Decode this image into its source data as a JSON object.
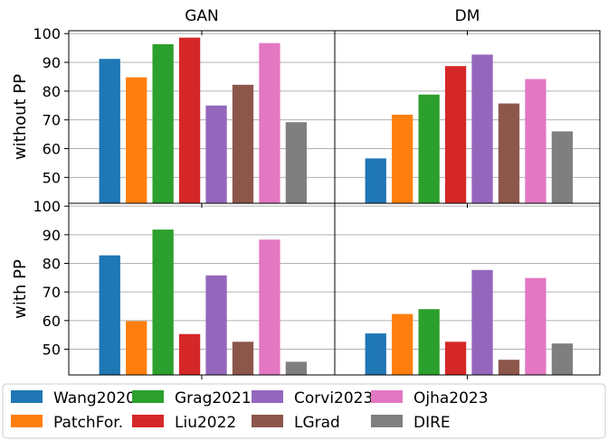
{
  "chart_data": {
    "type": "bar",
    "columns": [
      "GAN",
      "DM"
    ],
    "rows": [
      "without PP",
      "with PP"
    ],
    "series": [
      {
        "name": "Wang2020",
        "color": "#1f77b4"
      },
      {
        "name": "PatchFor.",
        "color": "#ff7f0e"
      },
      {
        "name": "Grag2021",
        "color": "#2ca02c"
      },
      {
        "name": "Liu2022",
        "color": "#d62728"
      },
      {
        "name": "Corvi2023",
        "color": "#9467bd"
      },
      {
        "name": "LGrad",
        "color": "#8c564b"
      },
      {
        "name": "Ojha2023",
        "color": "#e377c2"
      },
      {
        "name": "DIRE",
        "color": "#7f7f7f"
      }
    ],
    "values": {
      "without PP": {
        "GAN": [
          91.2,
          84.8,
          96.3,
          98.6,
          75.0,
          82.2,
          96.7,
          69.2
        ],
        "DM": [
          56.6,
          71.8,
          78.8,
          88.7,
          92.7,
          75.7,
          84.2,
          66.0
        ]
      },
      "with PP": {
        "GAN": [
          82.8,
          59.8,
          91.8,
          55.3,
          75.8,
          52.6,
          88.3,
          45.6
        ],
        "DM": [
          55.5,
          62.3,
          64.0,
          52.6,
          77.7,
          46.3,
          74.9,
          52.0
        ]
      }
    },
    "ylim": [
      41,
      101
    ],
    "yticks": [
      50,
      60,
      70,
      80,
      90,
      100
    ],
    "grid": "horizontal",
    "legend_position": "bottom",
    "legend_columns": 5
  }
}
